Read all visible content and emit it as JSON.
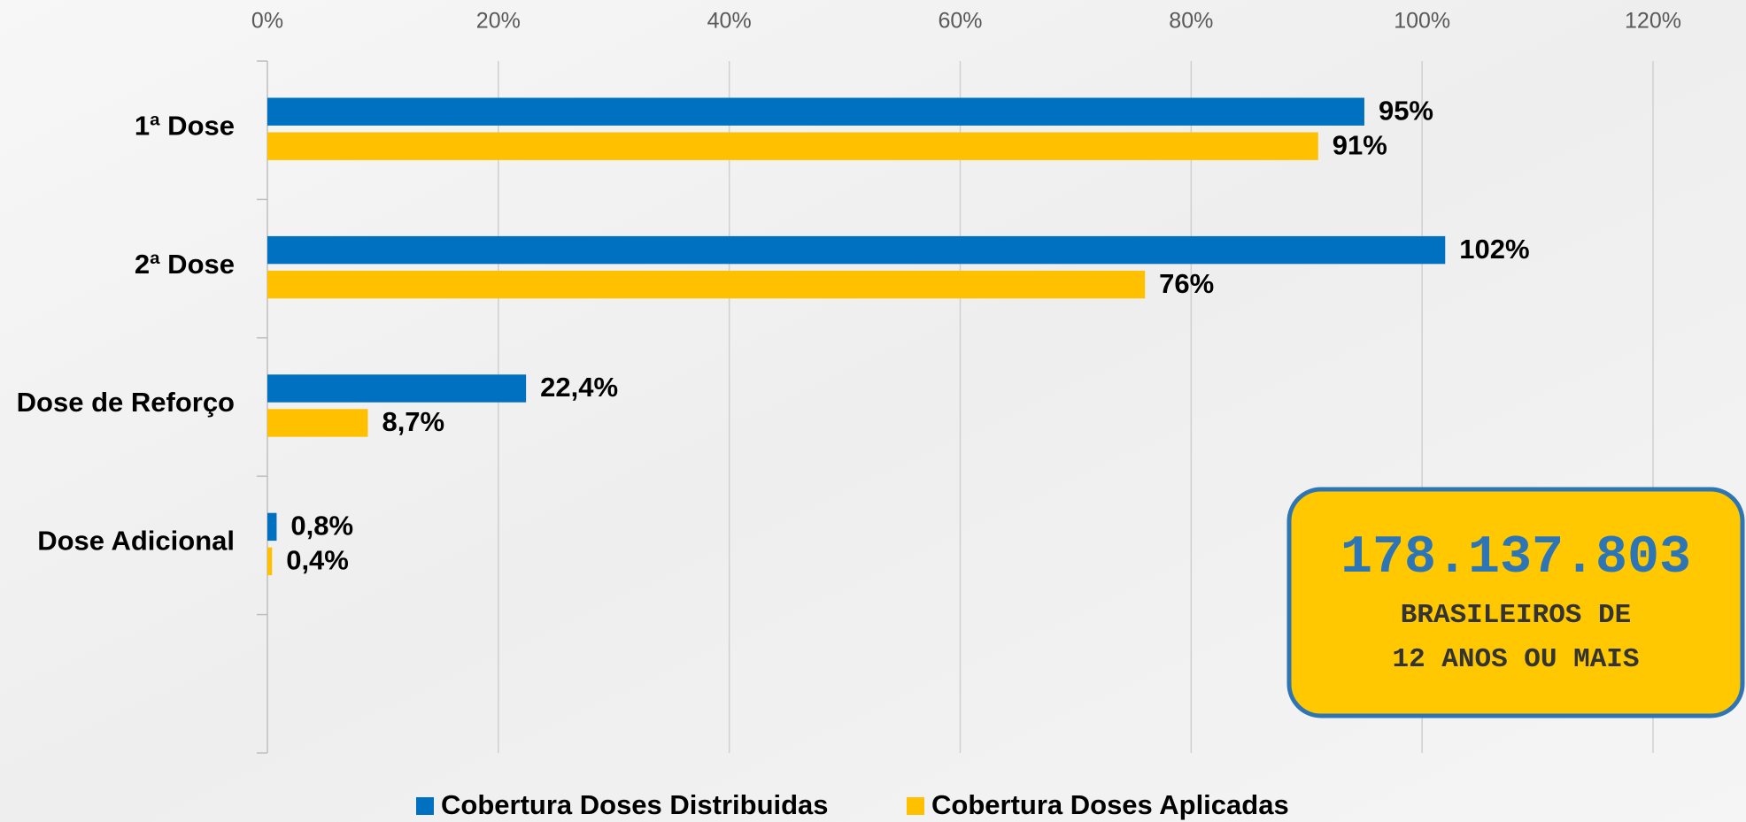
{
  "chart_data": {
    "type": "bar",
    "orientation": "horizontal",
    "categories": [
      "1ª Dose",
      "2ª Dose",
      "Dose de Reforço",
      "Dose Adicional",
      null
    ],
    "series": [
      {
        "name": "Cobertura Doses Distribuidas",
        "color": "#0070c0",
        "values": [
          95,
          102,
          22.4,
          0.8,
          null
        ],
        "value_labels": [
          "95%",
          "102%",
          "22,4%",
          "0,8%",
          null
        ]
      },
      {
        "name": "Cobertura Doses Aplicadas",
        "color": "#ffc000",
        "values": [
          91,
          76,
          8.7,
          0.4,
          null
        ],
        "value_labels": [
          "91%",
          "76%",
          "8,7%",
          "0,4%",
          null
        ]
      }
    ],
    "xlim": [
      0,
      120
    ],
    "xticks": [
      {
        "value": 0,
        "label": "0%"
      },
      {
        "value": 20,
        "label": "20%"
      },
      {
        "value": 40,
        "label": "40%"
      },
      {
        "value": 60,
        "label": "60%"
      },
      {
        "value": 80,
        "label": "80%"
      },
      {
        "value": 100,
        "label": "100%"
      },
      {
        "value": 120,
        "label": "120%"
      }
    ],
    "grid": true,
    "legend": "bottom",
    "annotations": [
      "178.137.803",
      "BRASILEIROS DE",
      "12 ANOS OU MAIS"
    ]
  }
}
